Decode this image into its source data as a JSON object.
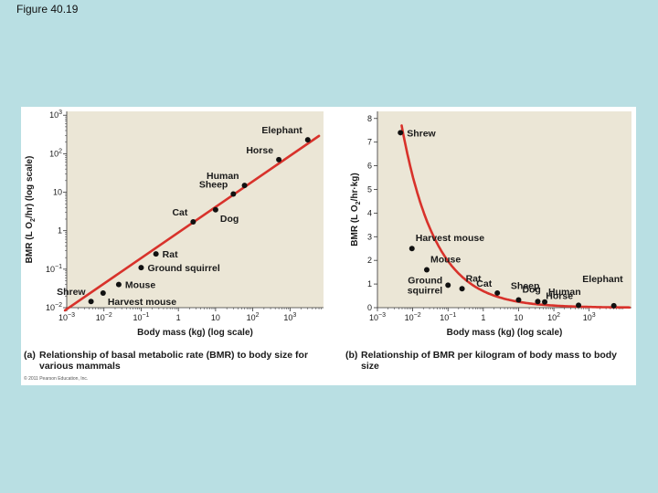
{
  "page_title": "Figure 40.19",
  "copyright": "© 2011 Pearson Education, Inc.",
  "colors": {
    "panel_bg": "#ebe6d6",
    "curve": "#d8322b",
    "point": "#111111",
    "page_bg": "#b9dfe3"
  },
  "chart_data": [
    {
      "id": "a",
      "type": "scatter",
      "xscale": "log",
      "yscale": "log",
      "xlabel": "Body mass (kg) (log scale)",
      "ylabel_parts": [
        "BMR (L O",
        "2",
        "/hr) (log scale)"
      ],
      "xlim_exp": [
        -3,
        3.9
      ],
      "ylim_exp": [
        -2,
        3.1
      ],
      "x_tick_exps": [
        -3,
        -2,
        -1,
        0,
        1,
        2,
        3
      ],
      "x_tick_labels": [
        "10−3",
        "10−2",
        "10−1",
        "1",
        "10",
        "102",
        "103"
      ],
      "y_tick_exps": [
        -2,
        -1,
        0,
        1,
        2,
        3
      ],
      "y_tick_labels": [
        "10−2",
        "10−1",
        "1",
        "10",
        "102",
        "103"
      ],
      "fit_line": {
        "x": [
          0.0009,
          6000
        ],
        "y": [
          0.0085,
          290
        ]
      },
      "points": [
        {
          "name": "Shrew",
          "mass": 0.0045,
          "value": 0.0145,
          "label_pos": "above-left"
        },
        {
          "name": "Harvest mouse",
          "mass": 0.0095,
          "value": 0.024,
          "label_pos": "below-right"
        },
        {
          "name": "Mouse",
          "mass": 0.025,
          "value": 0.04,
          "label_pos": "right"
        },
        {
          "name": "Ground squirrel",
          "mass": 0.1,
          "value": 0.11,
          "label_pos": "right"
        },
        {
          "name": "Rat",
          "mass": 0.25,
          "value": 0.25,
          "label_pos": "right"
        },
        {
          "name": "Cat",
          "mass": 2.5,
          "value": 1.7,
          "label_pos": "above-left"
        },
        {
          "name": "Dog",
          "mass": 10,
          "value": 3.5,
          "label_pos": "below-right"
        },
        {
          "name": "Sheep",
          "mass": 30,
          "value": 9,
          "label_pos": "above-left"
        },
        {
          "name": "Human",
          "mass": 60,
          "value": 15,
          "label_pos": "above-left"
        },
        {
          "name": "Horse",
          "mass": 500,
          "value": 70,
          "label_pos": "above-left"
        },
        {
          "name": "Elephant",
          "mass": 3000,
          "value": 230,
          "label_pos": "above-left"
        }
      ],
      "caption_prefix": "(a)",
      "caption": [
        "Relationship of basal metabolic rate (BMR) to body size for",
        "various mammals"
      ]
    },
    {
      "id": "b",
      "type": "scatter",
      "xscale": "log",
      "yscale": "linear",
      "xlabel": "Body mass (kg) (log scale)",
      "ylabel_parts": [
        "BMR (L O",
        "2",
        "/hr·kg)"
      ],
      "xlim_exp": [
        -3,
        4.2
      ],
      "ylim": [
        0,
        8.3
      ],
      "x_tick_exps": [
        -3,
        -2,
        -1,
        0,
        1,
        2,
        3
      ],
      "x_tick_labels": [
        "10−3",
        "10−2",
        "10−1",
        "1",
        "10",
        "102",
        "103"
      ],
      "y_ticks": [
        0,
        1,
        2,
        3,
        4,
        5,
        6,
        7,
        8
      ],
      "curve": {
        "coefficient": 0.7,
        "exponent": -0.45,
        "x_min": 0.00485,
        "x_max": 14000
      },
      "points": [
        {
          "name": "Shrew",
          "mass": 0.0045,
          "value": 7.4,
          "label_pos": "right"
        },
        {
          "name": "Harvest mouse",
          "mass": 0.0095,
          "value": 2.5,
          "label_pos": "above-right"
        },
        {
          "name": "Mouse",
          "mass": 0.025,
          "value": 1.6,
          "label_pos": "above-right"
        },
        {
          "name": "Ground squirrel",
          "mass": 0.1,
          "value": 0.95,
          "label_pos": "left"
        },
        {
          "name": "Rat",
          "mass": 0.25,
          "value": 0.8,
          "label_pos": "above-right"
        },
        {
          "name": "Cat",
          "mass": 2.5,
          "value": 0.62,
          "label_pos": "above-left"
        },
        {
          "name": "Dog",
          "mass": 10,
          "value": 0.33,
          "label_pos": "above-right"
        },
        {
          "name": "Sheep",
          "mass": 35,
          "value": 0.26,
          "label_pos": "above-left-high"
        },
        {
          "name": "Human",
          "mass": 55,
          "value": 0.24,
          "label_pos": "above-right"
        },
        {
          "name": "Horse",
          "mass": 500,
          "value": 0.1,
          "label_pos": "above-left"
        },
        {
          "name": "Elephant",
          "mass": 5000,
          "value": 0.08,
          "label_pos": "above-high"
        }
      ],
      "caption_prefix": "(b)",
      "caption": [
        "Relationship of BMR per kilogram of body mass to body",
        "size"
      ]
    }
  ]
}
